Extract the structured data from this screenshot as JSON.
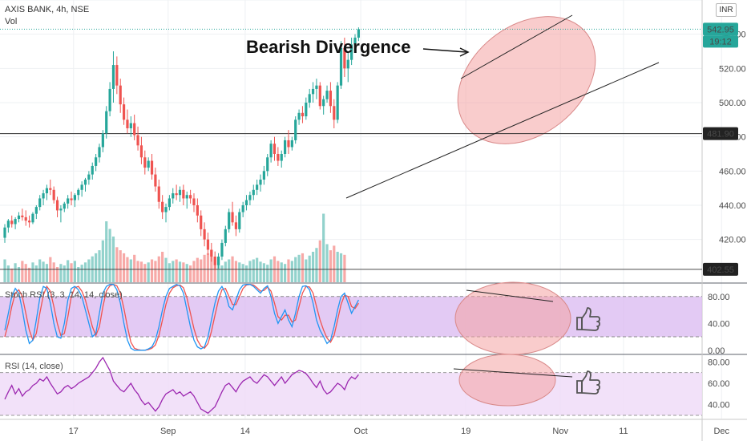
{
  "header": {
    "symbol": "AXIS BANK, 4h, NSE",
    "volume_label": "Vol",
    "currency": "INR"
  },
  "annotations": {
    "main_text": "Bearish Divergence"
  },
  "price_badges": {
    "last_price": "542.95",
    "countdown": "19:12",
    "level_upper": "481.90",
    "level_lower": "402.55"
  },
  "colors": {
    "up": "#26a69a",
    "down": "#ef5350",
    "ellipse_fill": "#f4a3a3",
    "ellipse_stroke": "#d98a8a",
    "stoch_band": "#d9b8f0",
    "rsi_band": "#f0dcf8",
    "stoch_k": "#2196f3",
    "stoch_d": "#ef5350",
    "rsi_line": "#9c27b0"
  },
  "chart_data": [
    {
      "type": "candlestick",
      "panel": "price",
      "ylim": [
        395,
        560
      ],
      "yticks": [
        "420.00",
        "440.00",
        "460.00",
        "480.00",
        "500.00",
        "520.00",
        "540.00",
        "560.00"
      ],
      "xticks": [
        "17",
        "Sep",
        "14",
        "Oct",
        "19",
        "Nov",
        "11",
        "Dec"
      ],
      "xlim": [
        0,
        200
      ],
      "xtick_positions": [
        21,
        48,
        70,
        103,
        133,
        160,
        178,
        206
      ],
      "horizontal_levels": [
        481.9,
        402.55
      ],
      "last_price": 542.95,
      "ohlc": [
        [
          421,
          429,
          418,
          427
        ],
        [
          427,
          432,
          424,
          431
        ],
        [
          431,
          434,
          427,
          429
        ],
        [
          429,
          433,
          426,
          432
        ],
        [
          432,
          436,
          430,
          434
        ],
        [
          434,
          438,
          431,
          433
        ],
        [
          433,
          437,
          428,
          431
        ],
        [
          431,
          434,
          427,
          430
        ],
        [
          430,
          436,
          429,
          435
        ],
        [
          435,
          440,
          432,
          439
        ],
        [
          439,
          446,
          437,
          444
        ],
        [
          444,
          449,
          440,
          447
        ],
        [
          447,
          452,
          443,
          450
        ],
        [
          450,
          455,
          446,
          449
        ],
        [
          449,
          451,
          441,
          443
        ],
        [
          443,
          445,
          433,
          437
        ],
        [
          437,
          440,
          430,
          438
        ],
        [
          438,
          442,
          436,
          441
        ],
        [
          441,
          446,
          438,
          444
        ],
        [
          444,
          448,
          440,
          443
        ],
        [
          443,
          447,
          439,
          446
        ],
        [
          446,
          450,
          443,
          449
        ],
        [
          449,
          454,
          445,
          452
        ],
        [
          452,
          456,
          448,
          455
        ],
        [
          455,
          460,
          452,
          458
        ],
        [
          458,
          465,
          455,
          463
        ],
        [
          463,
          470,
          460,
          468
        ],
        [
          468,
          476,
          465,
          474
        ],
        [
          474,
          484,
          471,
          482
        ],
        [
          482,
          498,
          479,
          495
        ],
        [
          495,
          512,
          492,
          508
        ],
        [
          508,
          530,
          500,
          522
        ],
        [
          522,
          527,
          505,
          510
        ],
        [
          510,
          514,
          494,
          499
        ],
        [
          499,
          503,
          487,
          490
        ],
        [
          490,
          496,
          482,
          485
        ],
        [
          485,
          492,
          480,
          488
        ],
        [
          488,
          493,
          478,
          481
        ],
        [
          481,
          486,
          472,
          475
        ],
        [
          475,
          480,
          464,
          468
        ],
        [
          468,
          472,
          458,
          462
        ],
        [
          462,
          468,
          460,
          466
        ],
        [
          466,
          470,
          455,
          458
        ],
        [
          458,
          462,
          448,
          451
        ],
        [
          451,
          455,
          438,
          442
        ],
        [
          442,
          446,
          432,
          436
        ],
        [
          436,
          441,
          430,
          439
        ],
        [
          439,
          446,
          437,
          444
        ],
        [
          444,
          450,
          441,
          447
        ],
        [
          447,
          452,
          443,
          446
        ],
        [
          446,
          451,
          442,
          449
        ],
        [
          449,
          452,
          440,
          444
        ],
        [
          444,
          448,
          438,
          446
        ],
        [
          446,
          449,
          441,
          444
        ],
        [
          444,
          447,
          436,
          440
        ],
        [
          440,
          444,
          430,
          434
        ],
        [
          434,
          437,
          422,
          426
        ],
        [
          426,
          430,
          416,
          420
        ],
        [
          420,
          424,
          411,
          414
        ],
        [
          414,
          418,
          407,
          410
        ],
        [
          410,
          413,
          402,
          405
        ],
        [
          405,
          412,
          403,
          410
        ],
        [
          410,
          420,
          408,
          418
        ],
        [
          418,
          428,
          416,
          426
        ],
        [
          426,
          438,
          424,
          436
        ],
        [
          436,
          442,
          428,
          430
        ],
        [
          430,
          434,
          422,
          426
        ],
        [
          426,
          438,
          424,
          436
        ],
        [
          436,
          442,
          433,
          440
        ],
        [
          440,
          446,
          437,
          443
        ],
        [
          443,
          448,
          440,
          446
        ],
        [
          446,
          452,
          443,
          449
        ],
        [
          449,
          455,
          446,
          452
        ],
        [
          452,
          458,
          448,
          455
        ],
        [
          455,
          463,
          452,
          460
        ],
        [
          460,
          470,
          457,
          468
        ],
        [
          468,
          478,
          465,
          476
        ],
        [
          476,
          480,
          466,
          470
        ],
        [
          470,
          474,
          463,
          466
        ],
        [
          466,
          472,
          462,
          470
        ],
        [
          470,
          480,
          468,
          478
        ],
        [
          478,
          484,
          470,
          474
        ],
        [
          474,
          480,
          472,
          478
        ],
        [
          478,
          492,
          476,
          490
        ],
        [
          490,
          496,
          487,
          494
        ],
        [
          494,
          498,
          488,
          492
        ],
        [
          492,
          503,
          490,
          500
        ],
        [
          500,
          508,
          497,
          505
        ],
        [
          505,
          512,
          500,
          508
        ],
        [
          508,
          514,
          502,
          510
        ],
        [
          510,
          512,
          496,
          498
        ],
        [
          498,
          504,
          493,
          502
        ],
        [
          502,
          510,
          500,
          507
        ],
        [
          507,
          512,
          494,
          498
        ],
        [
          498,
          502,
          485,
          490
        ],
        [
          490,
          512,
          488,
          510
        ],
        [
          510,
          536,
          508,
          532
        ],
        [
          532,
          538,
          515,
          520
        ],
        [
          520,
          530,
          512,
          525
        ],
        [
          525,
          538,
          522,
          534
        ],
        [
          534,
          540,
          530,
          538
        ],
        [
          538,
          544,
          536,
          542.95
        ]
      ]
    },
    {
      "type": "bar",
      "panel": "volume",
      "values": [
        30,
        22,
        18,
        25,
        20,
        28,
        24,
        19,
        26,
        22,
        30,
        27,
        24,
        33,
        26,
        20,
        24,
        22,
        29,
        25,
        28,
        20,
        23,
        26,
        30,
        34,
        38,
        42,
        55,
        80,
        70,
        60,
        46,
        42,
        38,
        33,
        30,
        36,
        28,
        27,
        24,
        26,
        30,
        28,
        34,
        40,
        32,
        25,
        28,
        30,
        27,
        26,
        24,
        22,
        28,
        32,
        30,
        36,
        38,
        42,
        33,
        24,
        22,
        27,
        30,
        34,
        28,
        26,
        24,
        22,
        28,
        30,
        32,
        27,
        25,
        23,
        30,
        34,
        28,
        26,
        24,
        30,
        28,
        33,
        36,
        38,
        30,
        35,
        40,
        45,
        55,
        90,
        50,
        42,
        48,
        40,
        38,
        36
      ]
    },
    {
      "type": "line",
      "panel": "stoch_rsi",
      "title": "Stoch RSI (3, 3, 14, 14, close)",
      "ylim": [
        -5,
        100
      ],
      "yticks": [
        "0.00",
        "40.00",
        "80.00"
      ],
      "band": [
        20,
        80
      ],
      "series": [
        {
          "values": [
            30,
            55,
            80,
            92,
            85,
            60,
            30,
            10,
            15,
            45,
            78,
            95,
            92,
            70,
            40,
            20,
            18,
            40,
            75,
            92,
            95,
            90,
            80,
            60,
            40,
            20,
            25,
            55,
            85,
            95,
            98,
            98,
            90,
            70,
            40,
            15,
            3,
            0,
            0,
            0,
            0,
            2,
            5,
            15,
            35,
            60,
            80,
            92,
            95,
            98,
            96,
            85,
            60,
            35,
            15,
            5,
            2,
            5,
            20,
            45,
            70,
            88,
            95,
            85,
            65,
            60,
            75,
            90,
            97,
            98,
            98,
            95,
            90,
            85,
            92,
            96,
            80,
            55,
            40,
            50,
            60,
            45,
            35,
            55,
            80,
            95,
            96,
            90,
            70,
            45,
            30,
            20,
            10,
            15,
            35,
            60,
            80,
            85,
            70,
            55,
            65,
            75
          ]
        },
        {
          "values": [
            20,
            40,
            65,
            85,
            90,
            80,
            55,
            30,
            15,
            25,
            55,
            82,
            95,
            88,
            65,
            40,
            22,
            25,
            50,
            80,
            93,
            95,
            88,
            75,
            55,
            35,
            22,
            35,
            65,
            88,
            96,
            98,
            96,
            85,
            62,
            35,
            12,
            3,
            1,
            0,
            0,
            1,
            3,
            8,
            22,
            45,
            68,
            85,
            93,
            96,
            97,
            93,
            78,
            55,
            32,
            15,
            6,
            3,
            10,
            28,
            52,
            75,
            90,
            92,
            80,
            68,
            68,
            80,
            92,
            97,
            98,
            97,
            93,
            88,
            89,
            94,
            88,
            70,
            50,
            45,
            52,
            52,
            42,
            45,
            65,
            85,
            95,
            94,
            85,
            65,
            45,
            30,
            18,
            12,
            22,
            45,
            68,
            82,
            80,
            65,
            62,
            70
          ]
        }
      ]
    },
    {
      "type": "line",
      "panel": "rsi",
      "title": "RSI (14, close)",
      "ylim": [
        27,
        87
      ],
      "yticks": [
        "40.00",
        "60.00",
        "80.00"
      ],
      "band": [
        30,
        70
      ],
      "series": [
        {
          "values": [
            45,
            52,
            58,
            50,
            55,
            48,
            52,
            54,
            58,
            60,
            64,
            62,
            66,
            60,
            55,
            50,
            52,
            56,
            58,
            55,
            57,
            60,
            62,
            64,
            66,
            70,
            74,
            80,
            84,
            78,
            72,
            62,
            58,
            54,
            52,
            56,
            60,
            54,
            50,
            44,
            40,
            42,
            38,
            34,
            38,
            45,
            50,
            52,
            54,
            50,
            52,
            48,
            50,
            52,
            48,
            42,
            36,
            34,
            32,
            35,
            38,
            45,
            52,
            58,
            60,
            56,
            52,
            58,
            62,
            64,
            66,
            62,
            60,
            64,
            68,
            66,
            62,
            58,
            62,
            66,
            60,
            64,
            68,
            70,
            72,
            71,
            69,
            65,
            60,
            56,
            62,
            54,
            50,
            52,
            56,
            60,
            58,
            54,
            62,
            66,
            64,
            68
          ]
        }
      ]
    }
  ]
}
